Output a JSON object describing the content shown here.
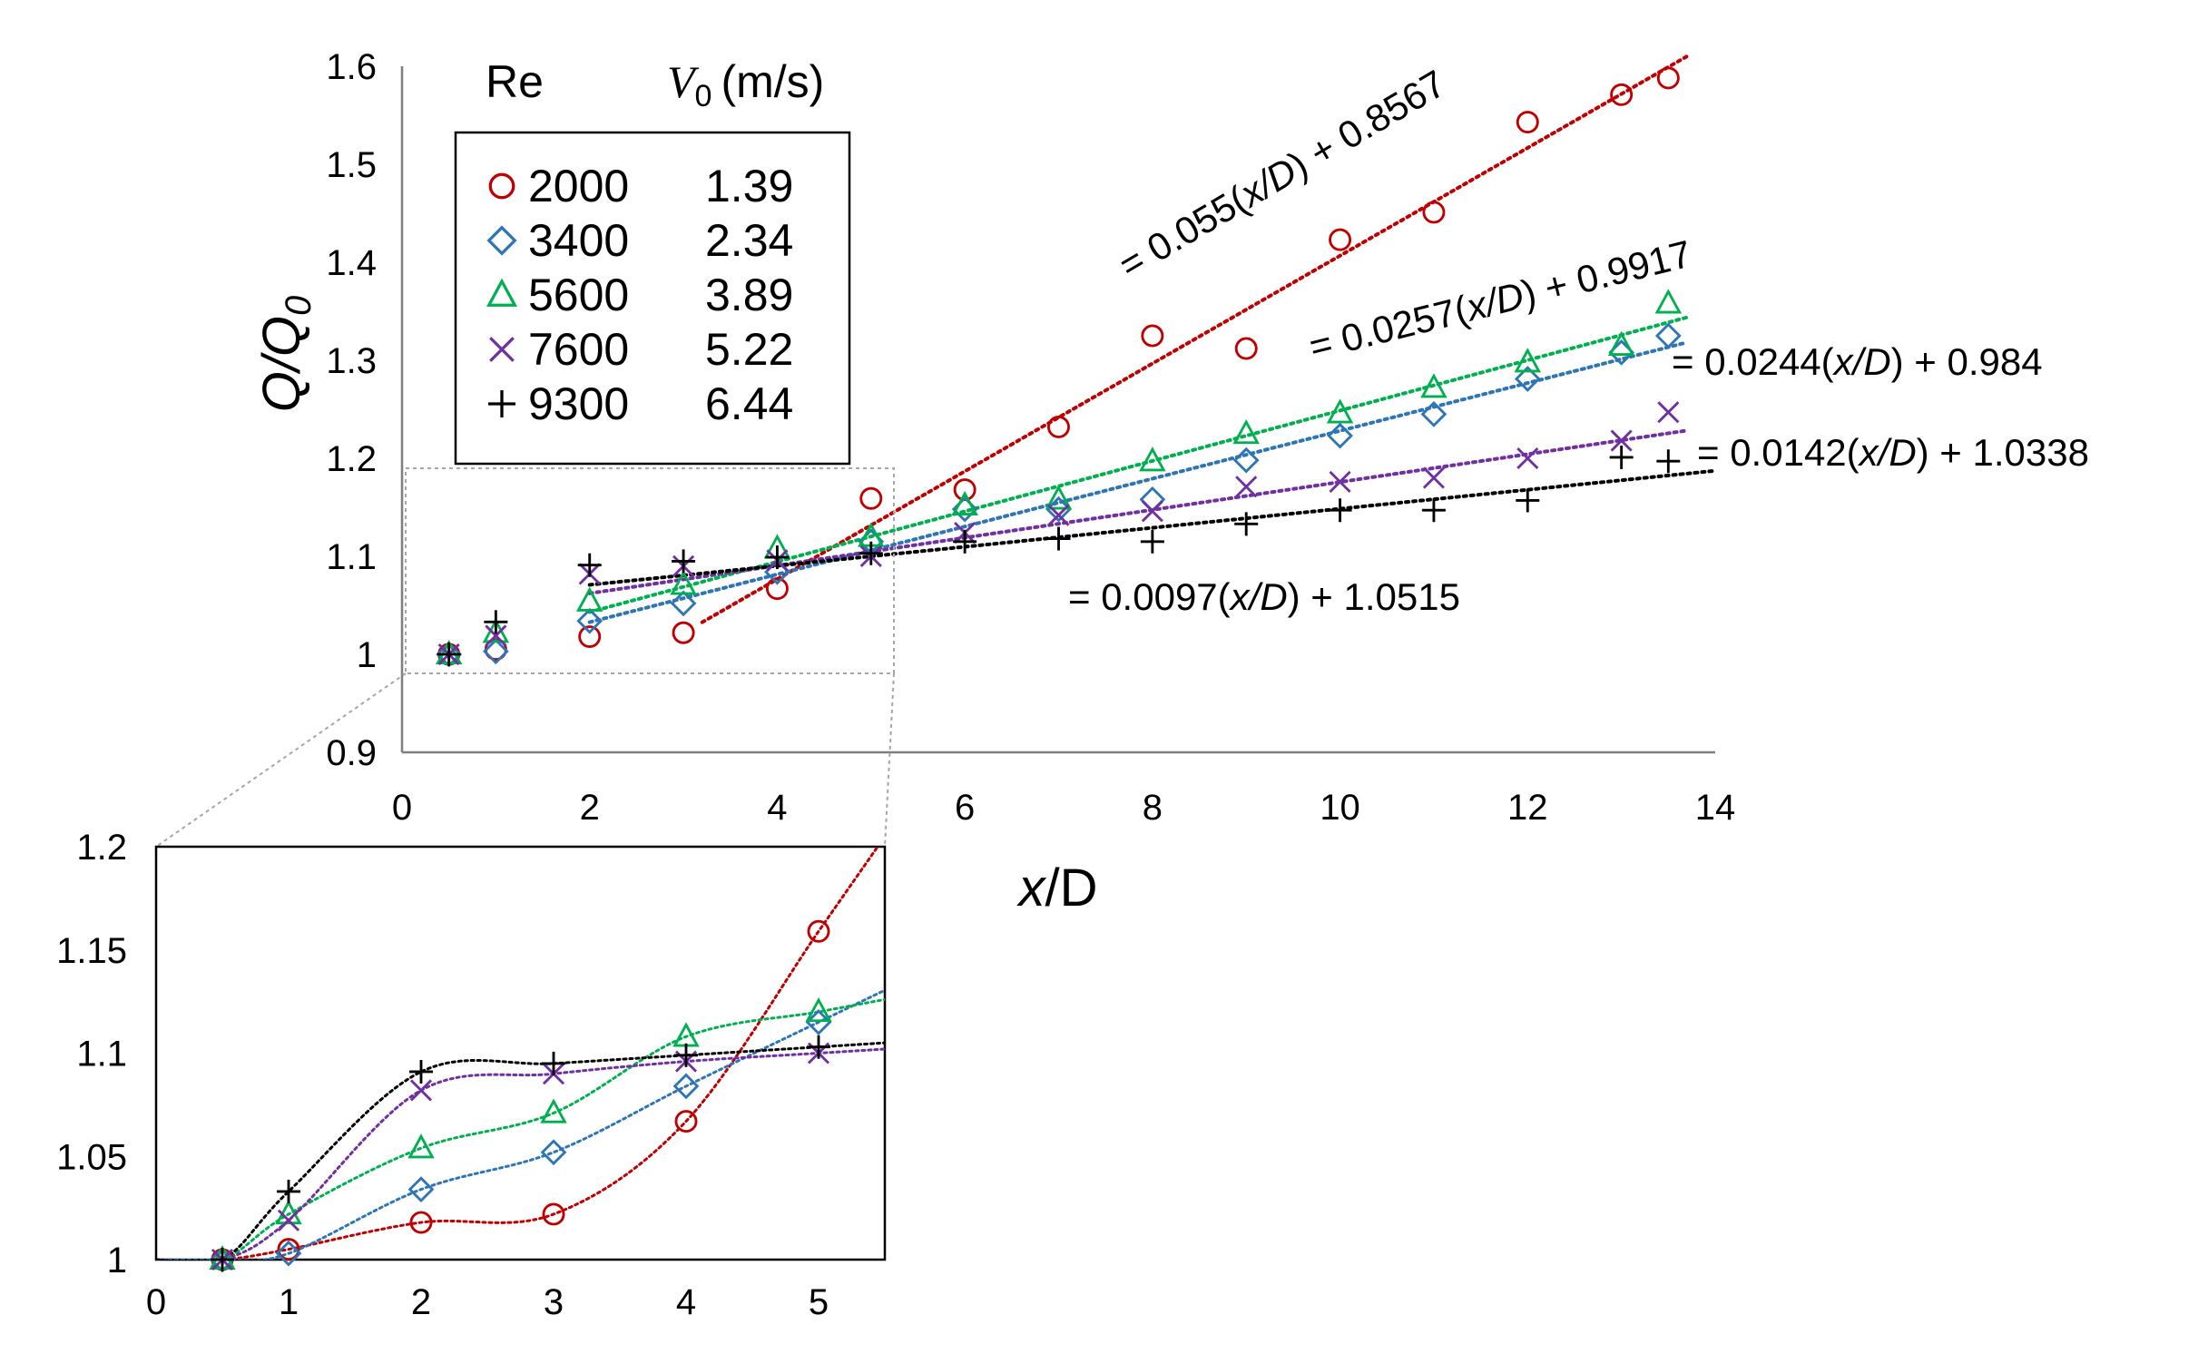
{
  "colors": {
    "re2000": "#c00000",
    "re3400": "#2e75b6",
    "re5600": "#00b050",
    "re7600": "#7030a0",
    "re9300": "#000000"
  },
  "chart_data": [
    {
      "type": "scatter",
      "xlabel_italic": "x",
      "xlabel_rest": "/D",
      "ylabel_main": "Q/Q",
      "ylabel_sub": "0",
      "xlim": [
        0,
        14
      ],
      "ylim": [
        0.9,
        1.6
      ],
      "xticks": [
        0,
        2,
        4,
        6,
        8,
        10,
        12,
        14
      ],
      "yticks": [
        0.9,
        1,
        1.1,
        1.2,
        1.3,
        1.4,
        1.5,
        1.6
      ],
      "ytick_labels": [
        "0.9",
        "1",
        "1.1",
        "1.2",
        "1.3",
        "1.4",
        "1.5",
        "1.6"
      ],
      "grid": false,
      "legend": {
        "position": "top-left",
        "header_re": "Re",
        "header_v_main": "V",
        "header_v_sub": "0",
        "header_v_unit": "(m/s)",
        "entries": [
          {
            "marker": "circle",
            "color_key": "re2000",
            "re": "2000",
            "v0": "1.39"
          },
          {
            "marker": "diamond",
            "color_key": "re3400",
            "re": "3400",
            "v0": "2.34"
          },
          {
            "marker": "triangle",
            "color_key": "re5600",
            "re": "5600",
            "v0": "3.89"
          },
          {
            "marker": "x",
            "color_key": "re7600",
            "re": "7600",
            "v0": "5.22"
          },
          {
            "marker": "plus",
            "color_key": "re9300",
            "re": "9300",
            "v0": "6.44"
          }
        ]
      },
      "series": [
        {
          "name": "2000",
          "marker": "circle",
          "color_key": "re2000",
          "x": [
            0.5,
            1,
            2,
            3,
            4,
            5,
            6,
            7,
            8,
            9,
            10,
            11,
            12,
            13,
            13.5
          ],
          "y": [
            1.0,
            1.005,
            1.018,
            1.022,
            1.067,
            1.159,
            1.168,
            1.232,
            1.325,
            1.312,
            1.423,
            1.451,
            1.543,
            1.571,
            1.588
          ],
          "trend": {
            "slope": 0.055,
            "intercept": 0.8567,
            "x_range": [
              3.2,
              13.7
            ]
          }
        },
        {
          "name": "3400",
          "marker": "diamond",
          "color_key": "re3400",
          "x": [
            0.5,
            1,
            2,
            3,
            4,
            5,
            6,
            7,
            8,
            9,
            10,
            11,
            12,
            13,
            13.5
          ],
          "y": [
            1.0,
            1.003,
            1.034,
            1.052,
            1.084,
            1.115,
            1.148,
            1.148,
            1.158,
            1.198,
            1.223,
            1.245,
            1.281,
            1.308,
            1.325
          ],
          "trend": {
            "slope": 0.0244,
            "intercept": 0.984,
            "x_range": [
              2,
              13.7
            ]
          }
        },
        {
          "name": "5600",
          "marker": "triangle",
          "color_key": "re5600",
          "x": [
            0.5,
            1,
            2,
            3,
            4,
            5,
            6,
            7,
            8,
            9,
            10,
            11,
            12,
            13,
            13.5
          ],
          "y": [
            1.0,
            1.022,
            1.054,
            1.071,
            1.108,
            1.12,
            1.152,
            1.158,
            1.197,
            1.225,
            1.246,
            1.272,
            1.298,
            1.315,
            1.358
          ],
          "trend": {
            "slope": 0.0257,
            "intercept": 0.9917,
            "x_range": [
              2,
              13.7
            ]
          }
        },
        {
          "name": "7600",
          "marker": "x",
          "color_key": "re7600",
          "x": [
            0.5,
            1,
            2,
            3,
            4,
            5,
            6,
            7,
            8,
            9,
            10,
            11,
            12,
            13,
            13.5
          ],
          "y": [
            1.0,
            1.019,
            1.082,
            1.09,
            1.096,
            1.1,
            1.124,
            1.142,
            1.146,
            1.171,
            1.176,
            1.18,
            1.2,
            1.218,
            1.247
          ],
          "trend": {
            "slope": 0.0142,
            "intercept": 1.0338,
            "x_range": [
              2,
              13.7
            ]
          }
        },
        {
          "name": "9300",
          "marker": "plus",
          "color_key": "re9300",
          "x": [
            0.5,
            1,
            2,
            3,
            4,
            5,
            6,
            7,
            8,
            9,
            10,
            11,
            12,
            13,
            13.5
          ],
          "y": [
            1.0,
            1.033,
            1.091,
            1.095,
            1.099,
            1.103,
            1.115,
            1.118,
            1.115,
            1.133,
            1.147,
            1.147,
            1.157,
            1.201,
            1.197
          ],
          "trend": {
            "slope": 0.0097,
            "intercept": 1.0515,
            "x_range": [
              2,
              14
            ]
          }
        }
      ],
      "annotations": [
        {
          "color_key": "re2000",
          "prefix": "= 0.055(",
          "italic": "x/D",
          "suffix": ") + 0.8567"
        },
        {
          "color_key": "re5600",
          "prefix": "= 0.0257(",
          "italic": "x/D",
          "suffix": ") + 0.9917"
        },
        {
          "color_key": "re3400",
          "prefix": "= 0.0244(",
          "italic": "x/D",
          "suffix": ")  + 0.984"
        },
        {
          "color_key": "re7600",
          "prefix": "= 0.0142(",
          "italic": "x/D",
          "suffix": ")  + 1.0338"
        },
        {
          "color_key": "re9300",
          "prefix": "= 0.0097(",
          "italic": "x/D",
          "suffix": ")  + 1.0515"
        }
      ]
    },
    {
      "type": "scatter",
      "role": "inset",
      "xlim": [
        0,
        5.5
      ],
      "ylim": [
        1,
        1.2
      ],
      "xticks": [
        0,
        1,
        2,
        3,
        4,
        5
      ],
      "yticks": [
        1,
        1.05,
        1.1,
        1.15,
        1.2
      ],
      "ytick_labels": [
        "1",
        "1.05",
        "1.1",
        "1.15",
        "1.2"
      ],
      "grid": false,
      "series": [
        {
          "name": "2000",
          "marker": "circle",
          "color_key": "re2000",
          "x": [
            0.5,
            1,
            2,
            3,
            4,
            5
          ],
          "y": [
            1.0,
            1.005,
            1.018,
            1.022,
            1.067,
            1.159
          ]
        },
        {
          "name": "3400",
          "marker": "diamond",
          "color_key": "re3400",
          "x": [
            0.5,
            1,
            2,
            3,
            4,
            5
          ],
          "y": [
            1.0,
            1.003,
            1.034,
            1.052,
            1.084,
            1.115
          ]
        },
        {
          "name": "5600",
          "marker": "triangle",
          "color_key": "re5600",
          "x": [
            0.5,
            1,
            2,
            3,
            4,
            5
          ],
          "y": [
            1.0,
            1.022,
            1.054,
            1.071,
            1.108,
            1.12
          ]
        },
        {
          "name": "7600",
          "marker": "x",
          "color_key": "re7600",
          "x": [
            0.5,
            1,
            2,
            3,
            4,
            5
          ],
          "y": [
            1.0,
            1.019,
            1.082,
            1.09,
            1.096,
            1.1
          ]
        },
        {
          "name": "9300",
          "marker": "plus",
          "color_key": "re9300",
          "x": [
            0.5,
            1,
            2,
            3,
            4,
            5
          ],
          "y": [
            1.0,
            1.033,
            1.091,
            1.095,
            1.099,
            1.103
          ]
        }
      ]
    }
  ]
}
